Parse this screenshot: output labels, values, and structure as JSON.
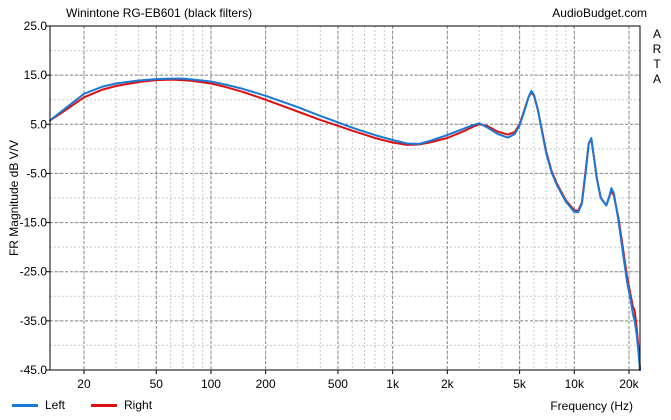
{
  "chart_data": {
    "type": "line",
    "title": "Winintone RG-EB601 (black filters)",
    "source_label": "AudioBudget.com",
    "software_label": [
      "A",
      "R",
      "T",
      "A"
    ],
    "xlabel": "Frequency (Hz)",
    "ylabel": "FR Magnitude dB V/V",
    "xscale": "log",
    "xlim": [
      13,
      23000
    ],
    "ylim": [
      -45,
      25
    ],
    "x_ticks": [
      {
        "value": 20,
        "label": "20"
      },
      {
        "value": 50,
        "label": "50"
      },
      {
        "value": 100,
        "label": "100"
      },
      {
        "value": 200,
        "label": "200"
      },
      {
        "value": 500,
        "label": "500"
      },
      {
        "value": 1000,
        "label": "1k"
      },
      {
        "value": 2000,
        "label": "2k"
      },
      {
        "value": 5000,
        "label": "5k"
      },
      {
        "value": 10000,
        "label": "10k"
      },
      {
        "value": 20000,
        "label": "20k"
      }
    ],
    "y_ticks": [
      {
        "value": 25,
        "label": "25.0"
      },
      {
        "value": 15,
        "label": "15.0"
      },
      {
        "value": 5,
        "label": "5.0"
      },
      {
        "value": -5,
        "label": "-5.0"
      },
      {
        "value": -15,
        "label": "-15.0"
      },
      {
        "value": -25,
        "label": "-25.0"
      },
      {
        "value": -35,
        "label": "-35.0"
      },
      {
        "value": -45,
        "label": "-45.0"
      }
    ],
    "grid": true,
    "legend_position": "bottom-left",
    "series": [
      {
        "name": "Right",
        "color": "#dd1111",
        "points": [
          [
            13,
            5.8
          ],
          [
            15,
            7.3
          ],
          [
            20,
            10.5
          ],
          [
            25,
            12.0
          ],
          [
            30,
            12.8
          ],
          [
            40,
            13.6
          ],
          [
            50,
            14.0
          ],
          [
            60,
            14.1
          ],
          [
            70,
            14.0
          ],
          [
            80,
            13.8
          ],
          [
            100,
            13.3
          ],
          [
            120,
            12.6
          ],
          [
            150,
            11.6
          ],
          [
            200,
            10.0
          ],
          [
            300,
            7.6
          ],
          [
            400,
            5.9
          ],
          [
            500,
            4.7
          ],
          [
            600,
            3.7
          ],
          [
            700,
            2.9
          ],
          [
            800,
            2.2
          ],
          [
            1000,
            1.3
          ],
          [
            1200,
            0.8
          ],
          [
            1400,
            0.9
          ],
          [
            1600,
            1.3
          ],
          [
            2000,
            2.2
          ],
          [
            2500,
            3.7
          ],
          [
            2800,
            4.6
          ],
          [
            3000,
            5.0
          ],
          [
            3300,
            4.7
          ],
          [
            3800,
            3.5
          ],
          [
            4300,
            2.9
          ],
          [
            4700,
            3.4
          ],
          [
            5000,
            5.0
          ],
          [
            5300,
            7.8
          ],
          [
            5600,
            10.5
          ],
          [
            5800,
            11.5
          ],
          [
            6000,
            10.8
          ],
          [
            6300,
            8.0
          ],
          [
            6700,
            3.0
          ],
          [
            7000,
            -0.5
          ],
          [
            7500,
            -4.5
          ],
          [
            8000,
            -7.0
          ],
          [
            9000,
            -10.5
          ],
          [
            10000,
            -12.5
          ],
          [
            10500,
            -12.6
          ],
          [
            11000,
            -11.0
          ],
          [
            11500,
            -5.0
          ],
          [
            12000,
            1.0
          ],
          [
            12400,
            2.0
          ],
          [
            12800,
            -1.5
          ],
          [
            13300,
            -6.0
          ],
          [
            14000,
            -10.0
          ],
          [
            15000,
            -11.5
          ],
          [
            15500,
            -10.0
          ],
          [
            16000,
            -8.5
          ],
          [
            16500,
            -9.5
          ],
          [
            17500,
            -14.0
          ],
          [
            18500,
            -20.0
          ],
          [
            19500,
            -26.0
          ],
          [
            20500,
            -30.0
          ],
          [
            21000,
            -32.0
          ],
          [
            21500,
            -33.0
          ],
          [
            22000,
            -36.0
          ],
          [
            22500,
            -40.0
          ],
          [
            23000,
            -45.0
          ]
        ]
      },
      {
        "name": "Left",
        "color": "#1a78d6",
        "points": [
          [
            13,
            5.8
          ],
          [
            15,
            7.6
          ],
          [
            20,
            11.2
          ],
          [
            25,
            12.6
          ],
          [
            30,
            13.3
          ],
          [
            40,
            13.9
          ],
          [
            50,
            14.2
          ],
          [
            60,
            14.3
          ],
          [
            70,
            14.3
          ],
          [
            80,
            14.1
          ],
          [
            100,
            13.7
          ],
          [
            120,
            13.1
          ],
          [
            150,
            12.2
          ],
          [
            200,
            10.8
          ],
          [
            300,
            8.5
          ],
          [
            400,
            6.7
          ],
          [
            500,
            5.4
          ],
          [
            600,
            4.3
          ],
          [
            700,
            3.5
          ],
          [
            800,
            2.8
          ],
          [
            1000,
            1.8
          ],
          [
            1200,
            1.1
          ],
          [
            1400,
            1.0
          ],
          [
            1600,
            1.6
          ],
          [
            2000,
            2.8
          ],
          [
            2500,
            4.2
          ],
          [
            2800,
            4.9
          ],
          [
            3000,
            5.2
          ],
          [
            3300,
            4.4
          ],
          [
            3800,
            3.0
          ],
          [
            4300,
            2.3
          ],
          [
            4700,
            3.0
          ],
          [
            5000,
            4.8
          ],
          [
            5300,
            7.6
          ],
          [
            5600,
            10.5
          ],
          [
            5800,
            11.8
          ],
          [
            6000,
            11.0
          ],
          [
            6300,
            8.0
          ],
          [
            6700,
            2.8
          ],
          [
            7000,
            -0.8
          ],
          [
            7500,
            -4.8
          ],
          [
            8000,
            -7.3
          ],
          [
            9000,
            -10.8
          ],
          [
            10000,
            -12.8
          ],
          [
            10500,
            -12.9
          ],
          [
            11000,
            -11.2
          ],
          [
            11500,
            -5.5
          ],
          [
            12000,
            1.0
          ],
          [
            12400,
            2.2
          ],
          [
            12800,
            -1.5
          ],
          [
            13300,
            -6.0
          ],
          [
            14000,
            -10.0
          ],
          [
            15000,
            -11.5
          ],
          [
            15500,
            -10.0
          ],
          [
            16000,
            -8.0
          ],
          [
            16500,
            -9.0
          ],
          [
            17500,
            -14.5
          ],
          [
            18500,
            -21.0
          ],
          [
            19500,
            -27.0
          ],
          [
            20500,
            -31.0
          ],
          [
            21000,
            -33.5
          ],
          [
            21500,
            -35.0
          ],
          [
            22000,
            -37.5
          ],
          [
            22500,
            -41.0
          ],
          [
            23000,
            -45.0
          ]
        ]
      }
    ]
  }
}
